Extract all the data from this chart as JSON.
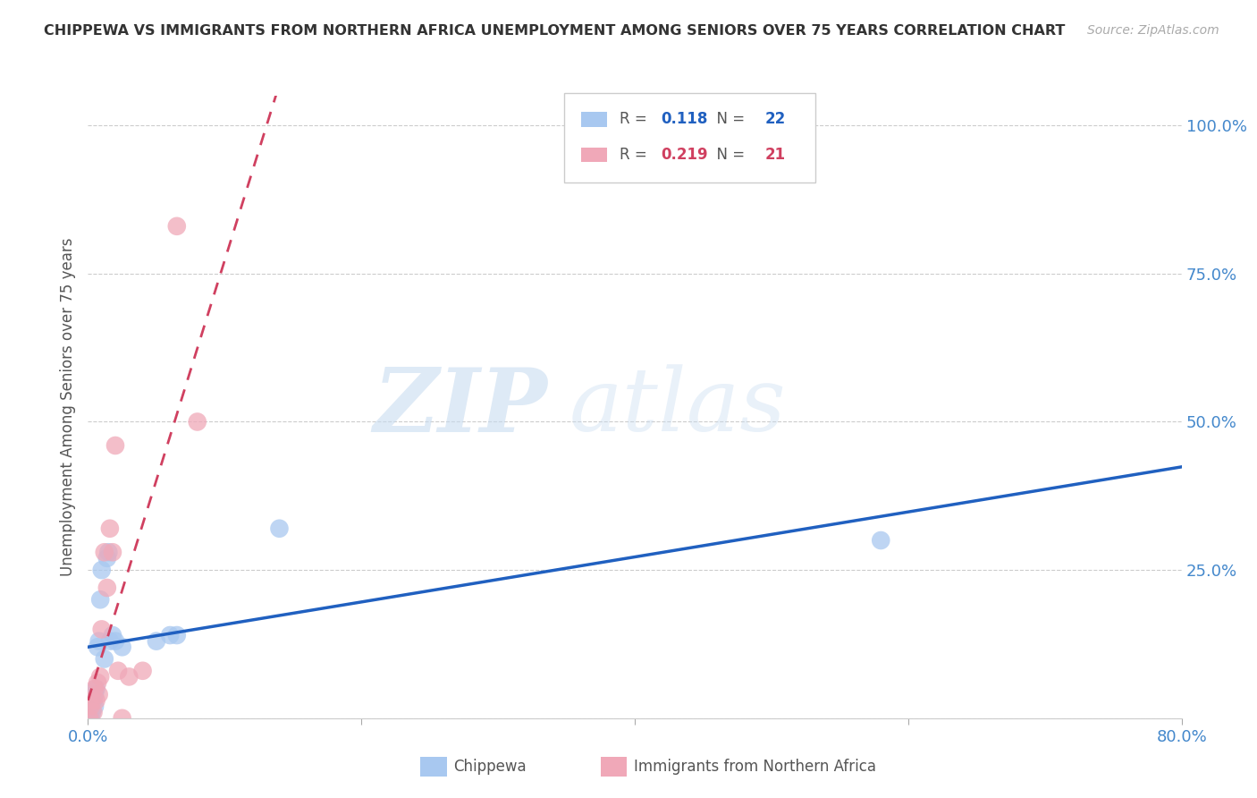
{
  "title": "CHIPPEWA VS IMMIGRANTS FROM NORTHERN AFRICA UNEMPLOYMENT AMONG SENIORS OVER 75 YEARS CORRELATION CHART",
  "source": "Source: ZipAtlas.com",
  "ylabel": "Unemployment Among Seniors over 75 years",
  "chippewa_color": "#a8c8f0",
  "immigrants_color": "#f0a8b8",
  "chippewa_line_color": "#2060c0",
  "immigrants_line_color": "#d04060",
  "watermark_zip": "ZIP",
  "watermark_atlas": "atlas",
  "xlim": [
    0.0,
    0.8
  ],
  "ylim": [
    0.0,
    1.05
  ],
  "chippewa_R": "0.118",
  "chippewa_N": "22",
  "immigrants_R": "0.219",
  "immigrants_N": "21",
  "chippewa_x": [
    0.002,
    0.003,
    0.004,
    0.005,
    0.005,
    0.006,
    0.007,
    0.008,
    0.009,
    0.01,
    0.012,
    0.014,
    0.015,
    0.016,
    0.018,
    0.02,
    0.025,
    0.05,
    0.06,
    0.065,
    0.14,
    0.58
  ],
  "chippewa_y": [
    0.0,
    0.01,
    0.03,
    0.02,
    0.04,
    0.05,
    0.12,
    0.13,
    0.2,
    0.25,
    0.1,
    0.27,
    0.28,
    0.13,
    0.14,
    0.13,
    0.12,
    0.13,
    0.14,
    0.14,
    0.32,
    0.3
  ],
  "immigrants_x": [
    0.001,
    0.002,
    0.003,
    0.004,
    0.005,
    0.006,
    0.007,
    0.008,
    0.009,
    0.01,
    0.012,
    0.014,
    0.016,
    0.018,
    0.02,
    0.022,
    0.025,
    0.03,
    0.04,
    0.065,
    0.08
  ],
  "immigrants_y": [
    0.0,
    0.02,
    0.03,
    0.01,
    0.05,
    0.03,
    0.06,
    0.04,
    0.07,
    0.15,
    0.28,
    0.22,
    0.32,
    0.28,
    0.46,
    0.08,
    0.0,
    0.07,
    0.08,
    0.83,
    0.5
  ]
}
